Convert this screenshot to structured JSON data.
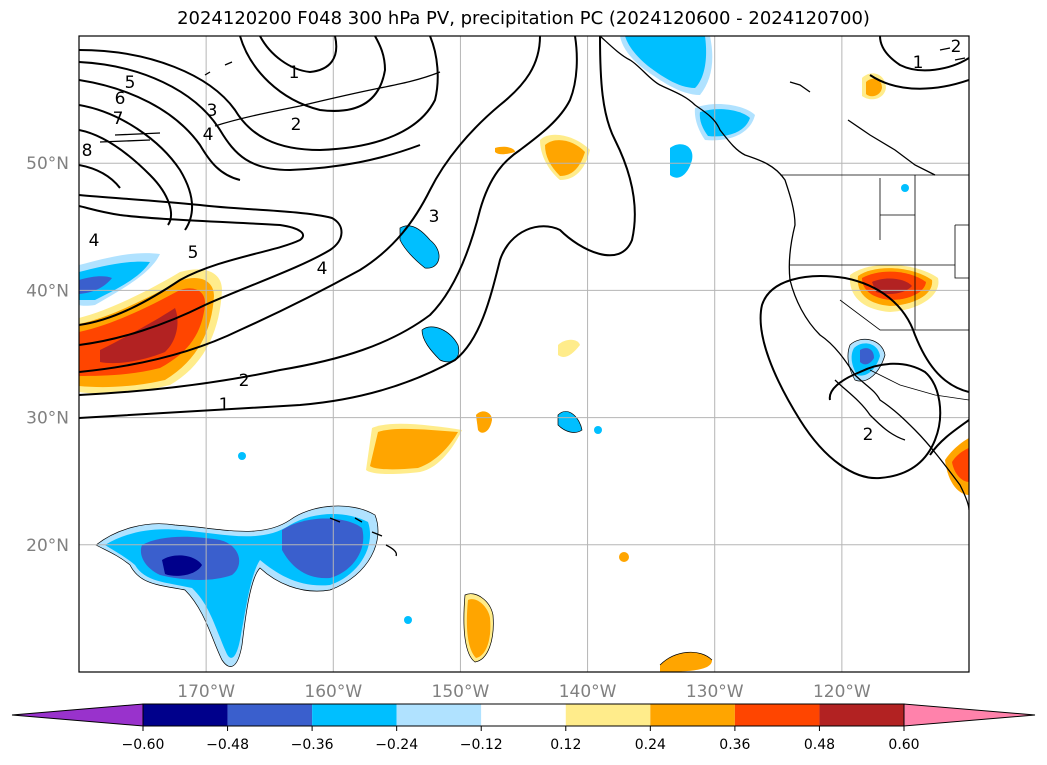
{
  "title": "2024120200 F048 300 hPa PV, precipitation PC (2024120600 - 2024120700)",
  "map": {
    "projection": "plate-carree",
    "lon_range": [
      -180,
      -110
    ],
    "lat_range": [
      10,
      60
    ],
    "gridlines": true,
    "lon_ticks": [
      {
        "value": -170,
        "label": "170°W"
      },
      {
        "value": -160,
        "label": "160°W"
      },
      {
        "value": -150,
        "label": "150°W"
      },
      {
        "value": -140,
        "label": "140°W"
      },
      {
        "value": -130,
        "label": "130°W"
      },
      {
        "value": -120,
        "label": "120°W"
      }
    ],
    "lat_ticks": [
      {
        "value": 50,
        "label": "50°N"
      },
      {
        "value": 40,
        "label": "40°N"
      },
      {
        "value": 30,
        "label": "30°N"
      },
      {
        "value": 20,
        "label": "20°N"
      }
    ],
    "pv_contour_labels": [
      "1",
      "2",
      "3",
      "4",
      "5",
      "6",
      "7",
      "8"
    ]
  },
  "colorbar": {
    "levels": [
      "−0.60",
      "−0.48",
      "−0.36",
      "−0.24",
      "−0.12",
      "0.12",
      "0.24",
      "0.36",
      "0.48",
      "0.60"
    ],
    "colors": [
      "#9932cc",
      "#00008b",
      "#3a5fcd",
      "#00bfff",
      "#b0e2ff",
      "#ffffff",
      "#ffec8b",
      "#ffa500",
      "#ff4500",
      "#b22222",
      "#ff82ab"
    ],
    "extend": "both",
    "orientation": "horizontal"
  }
}
